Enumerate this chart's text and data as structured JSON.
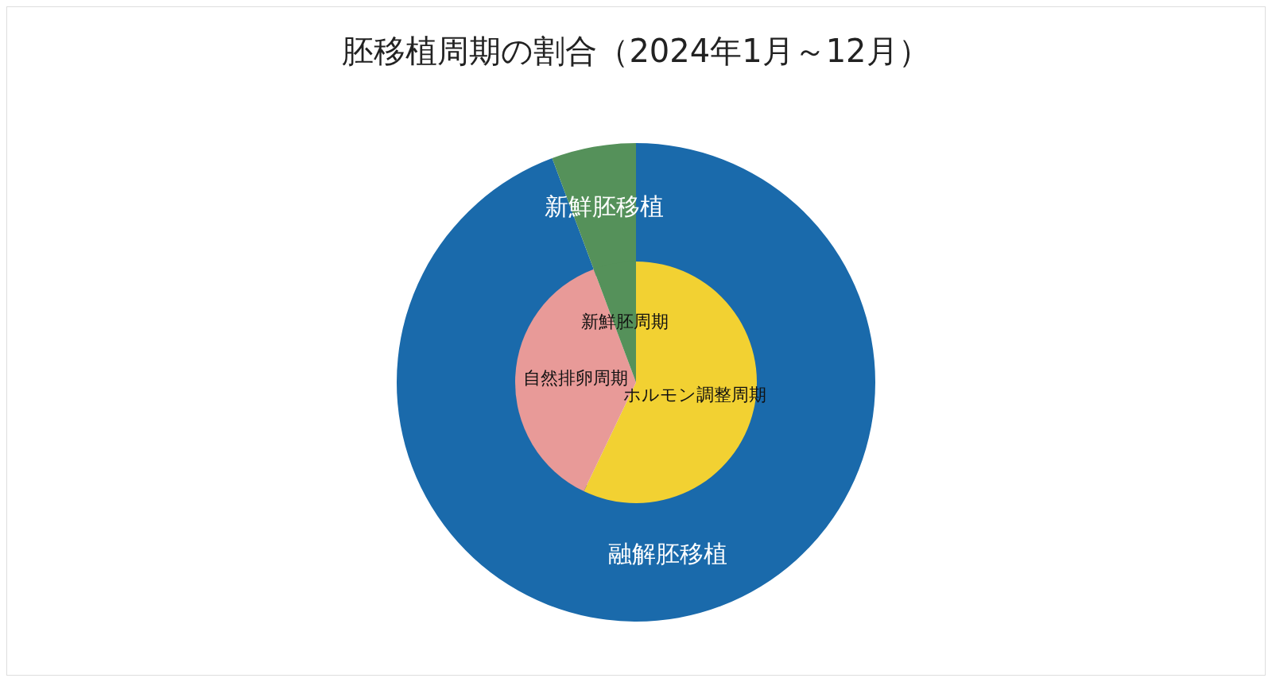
{
  "chart_data": [
    {
      "type": "donut",
      "title": "胚移植周期の割合（2024年1月～12月）",
      "categories": [
        "融解胚移植",
        "新鮮胚移植"
      ],
      "values": [
        94.3,
        5.7
      ],
      "colors": [
        "#1a6aab",
        "#55915a"
      ],
      "legend": false
    },
    {
      "type": "pie",
      "categories": [
        "ホルモン調整周期",
        "自然排卵周期",
        "新鮮胚周期"
      ],
      "values": [
        57.1,
        37.2,
        5.7
      ],
      "colors": [
        "#f2d132",
        "#e89a98",
        "#55915a"
      ],
      "legend": false
    }
  ]
}
